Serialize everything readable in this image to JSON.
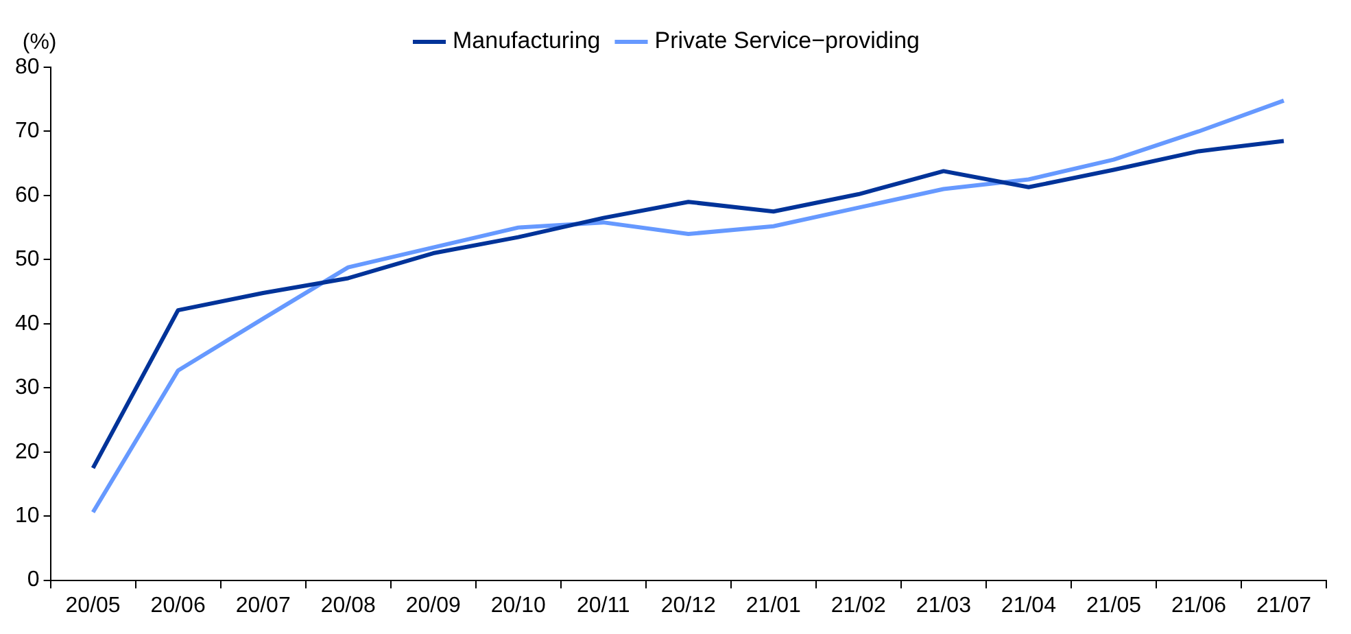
{
  "chart_data": {
    "type": "line",
    "ylabel": "(%)",
    "categories": [
      "20/05",
      "20/06",
      "20/07",
      "20/08",
      "20/09",
      "20/10",
      "20/11",
      "20/12",
      "21/01",
      "21/02",
      "21/03",
      "21/04",
      "21/05",
      "21/06",
      "21/07"
    ],
    "series": [
      {
        "name": "Manufacturing",
        "color": "#003399",
        "values": [
          17.5,
          42.1,
          44.8,
          47.1,
          51,
          53.5,
          56.5,
          59,
          57.5,
          60.2,
          63.8,
          61.3,
          64,
          66.9,
          68.5
        ]
      },
      {
        "name": "Private Service−providing",
        "color": "#6699ff",
        "values": [
          10.6,
          32.7,
          40.8,
          48.8,
          51.9,
          55,
          55.8,
          54,
          55.2,
          58.1,
          61,
          62.5,
          65.6,
          70,
          74.8
        ]
      }
    ],
    "ylim": [
      0,
      80
    ],
    "yticks": [
      0,
      10,
      20,
      30,
      40,
      50,
      60,
      70,
      80
    ],
    "grid": false,
    "legend": "top",
    "marker": "none",
    "line_style": "solid"
  }
}
